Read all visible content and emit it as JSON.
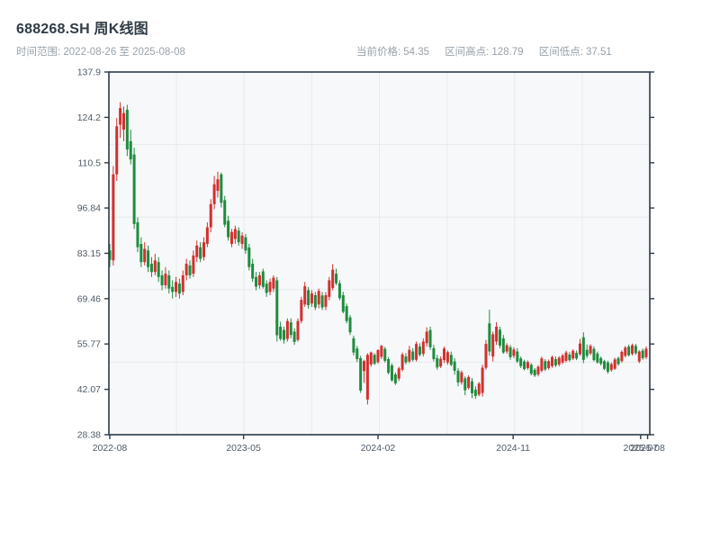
{
  "header": {
    "title": "688268.SH 周K线图",
    "subtitle": "时间范围: 2022-08-26 至 2025-08-08",
    "stats": [
      {
        "label": "当前价格:",
        "value": "54.35"
      },
      {
        "label": "区间高点:",
        "value": "128.79"
      },
      {
        "label": "区间低点:",
        "value": "37.51"
      }
    ]
  },
  "chart_data": {
    "type": "candlestick",
    "title": "688268.SH 周K线图",
    "period": "weekly",
    "date_start": "2022-08-26",
    "date_end": "2025-08-08",
    "current_price": 54.35,
    "range_high": 128.79,
    "range_low": 37.51,
    "ylim": [
      28.38,
      137.9
    ],
    "y_tick_labels": [
      "137.9",
      "124.2",
      "110.5",
      "96.84",
      "83.15",
      "69.46",
      "55.77",
      "42.07",
      "28.38"
    ],
    "x_ticks": [
      {
        "label": "2022-08",
        "week": 0
      },
      {
        "label": "2023-05",
        "week": 38.4
      },
      {
        "label": "2024-02",
        "week": 77
      },
      {
        "label": "2024-11",
        "week": 115.8
      },
      {
        "label": "2025-07",
        "week": 152.4
      },
      {
        "label": "2025-08",
        "week": 154.4
      }
    ],
    "grid": {
      "v_divisions": 8,
      "h_divisions": 5,
      "color": "#e7eaee"
    },
    "colors": {
      "up": "#d2302e",
      "down": "#1e8c3d",
      "frame": "#2b3a4a",
      "plot_bg": "#f7f8fa",
      "tick_label": "#4e5a66"
    },
    "ohlc": [
      [
        84,
        86,
        79,
        81.2
      ],
      [
        81,
        109.5,
        79.5,
        107
      ],
      [
        107,
        124,
        105,
        121.5
      ],
      [
        122,
        128.79,
        118,
        127
      ],
      [
        120.5,
        127.5,
        117,
        125.5
      ],
      [
        126.5,
        128,
        112.5,
        114.5
      ],
      [
        117,
        120.5,
        110,
        111.5
      ],
      [
        113,
        115,
        90.5,
        92
      ],
      [
        92.5,
        94,
        83.5,
        85
      ],
      [
        86,
        88,
        79,
        80.5
      ],
      [
        80.5,
        86.5,
        79.5,
        84.5
      ],
      [
        84,
        85.5,
        77.5,
        79
      ],
      [
        80,
        82,
        76,
        77.5
      ],
      [
        77.5,
        83,
        76.5,
        81
      ],
      [
        80.5,
        82,
        74.5,
        76
      ],
      [
        76.5,
        78,
        72,
        73.5
      ],
      [
        73.5,
        79,
        72.5,
        77
      ],
      [
        76.5,
        78,
        71,
        72.5
      ],
      [
        73,
        75,
        69.5,
        71.5
      ],
      [
        71.5,
        76,
        70,
        74.5
      ],
      [
        74,
        75.5,
        69.5,
        71
      ],
      [
        71.5,
        78,
        70.5,
        76.5
      ],
      [
        76.5,
        81.5,
        75,
        80
      ],
      [
        79.5,
        81,
        75.5,
        76.5
      ],
      [
        77,
        84,
        76,
        82.5
      ],
      [
        82,
        87,
        80.5,
        85.5
      ],
      [
        85,
        86.5,
        80.5,
        81.5
      ],
      [
        82,
        88,
        81,
        86.5
      ],
      [
        86,
        92.5,
        85,
        91
      ],
      [
        91,
        99.5,
        89.5,
        98
      ],
      [
        98,
        106.5,
        96.5,
        104
      ],
      [
        102,
        107.8,
        100,
        105.5
      ],
      [
        107,
        107.5,
        97,
        98.4
      ],
      [
        99.2,
        100.5,
        91,
        91.8
      ],
      [
        93,
        94.5,
        87,
        88
      ],
      [
        86,
        90.5,
        85,
        89.6
      ],
      [
        87.5,
        91.5,
        86,
        90.5
      ],
      [
        90,
        91,
        85.5,
        86.5
      ],
      [
        86,
        89.5,
        84.5,
        88.5
      ],
      [
        88,
        89,
        83,
        84
      ],
      [
        84.9,
        86,
        78,
        79
      ],
      [
        80,
        81.5,
        74.5,
        75.5
      ],
      [
        76,
        77.5,
        72,
        73.1
      ],
      [
        73.5,
        77.5,
        72.5,
        76.5
      ],
      [
        77.7,
        78.5,
        72.5,
        73
      ],
      [
        74,
        75,
        70,
        71.2
      ],
      [
        71.5,
        75.5,
        70.5,
        74.5
      ],
      [
        72.5,
        76.5,
        71.5,
        75.8
      ],
      [
        75,
        76,
        56.5,
        58.4
      ],
      [
        61,
        62.5,
        56.8,
        57.3
      ],
      [
        60,
        61,
        55.9,
        57
      ],
      [
        57.3,
        63.5,
        56.5,
        62.7
      ],
      [
        62.3,
        63.5,
        57.5,
        58.5
      ],
      [
        59.5,
        60.5,
        55.5,
        56.4
      ],
      [
        57,
        63.5,
        56.5,
        62.7
      ],
      [
        62.7,
        70,
        62,
        69.1
      ],
      [
        67.7,
        74.5,
        67,
        73.2
      ],
      [
        72,
        73,
        66.5,
        67.5
      ],
      [
        68,
        72,
        67,
        71
      ],
      [
        70.5,
        71.5,
        66,
        66.8
      ],
      [
        67.7,
        72.5,
        66.5,
        71.8
      ],
      [
        70.4,
        71.5,
        66,
        66.8
      ],
      [
        67,
        71.5,
        66,
        70.5
      ],
      [
        70,
        76,
        69,
        75
      ],
      [
        72.7,
        79.9,
        72,
        78.2
      ],
      [
        77,
        78.5,
        73.5,
        74.1
      ],
      [
        74.1,
        75,
        69,
        69.6
      ],
      [
        70.5,
        71.5,
        65,
        65.5
      ],
      [
        67.2,
        68,
        62,
        62.7
      ],
      [
        63.8,
        64.5,
        58.5,
        59.3
      ],
      [
        57.5,
        58.3,
        52.3,
        53.2
      ],
      [
        54.4,
        55.2,
        50.3,
        51.2
      ],
      [
        51.5,
        52.2,
        41,
        41.7
      ],
      [
        47.6,
        51,
        44,
        50.6
      ],
      [
        39,
        53,
        37.51,
        52.5
      ],
      [
        49.6,
        53.5,
        48.9,
        53.2
      ],
      [
        52.5,
        53,
        49.4,
        49.8
      ],
      [
        50.3,
        54.2,
        49.8,
        53.9
      ],
      [
        51.9,
        55.5,
        51.2,
        55.2
      ],
      [
        54.3,
        54.9,
        50.2,
        50.7
      ],
      [
        51.2,
        51.8,
        46.6,
        47.1
      ],
      [
        49.3,
        49.9,
        44.4,
        44.8
      ],
      [
        46.6,
        47.2,
        43.4,
        43.9
      ],
      [
        45.3,
        48.9,
        44.6,
        48.4
      ],
      [
        48,
        53.2,
        47.5,
        52.6
      ],
      [
        52,
        53,
        49.6,
        50.2
      ],
      [
        50.5,
        55.2,
        50,
        54
      ],
      [
        53.5,
        54.5,
        50.5,
        51
      ],
      [
        51,
        56.5,
        50.5,
        55.8
      ],
      [
        55,
        56,
        52,
        52.5
      ],
      [
        52.8,
        57.5,
        52,
        56.5
      ],
      [
        56,
        60.8,
        55,
        59.5
      ],
      [
        60,
        61,
        54,
        54.8
      ],
      [
        54.5,
        55.5,
        50.5,
        51.2
      ],
      [
        51.5,
        52.5,
        48,
        48.7
      ],
      [
        49,
        52,
        48.5,
        51.3
      ],
      [
        50.9,
        55,
        50,
        54.4
      ],
      [
        50.2,
        53.8,
        49.5,
        53.3
      ],
      [
        52.5,
        53.5,
        49,
        49.5
      ],
      [
        50.5,
        51.5,
        46.5,
        47.7
      ],
      [
        47.7,
        48.5,
        43,
        44.2
      ],
      [
        44.2,
        47.8,
        43.5,
        47.2
      ],
      [
        45.4,
        46,
        40.3,
        41.8
      ],
      [
        42.5,
        46.3,
        42,
        45.8
      ],
      [
        44.5,
        45.5,
        39.4,
        40.9
      ],
      [
        42,
        43,
        39.2,
        40.1
      ],
      [
        40.5,
        44.3,
        40,
        43.8
      ],
      [
        41,
        49.5,
        39.9,
        48.6
      ],
      [
        48.6,
        57,
        48,
        55.8
      ],
      [
        62,
        66.1,
        52.3,
        53.5
      ],
      [
        52,
        59.5,
        50.5,
        58.7
      ],
      [
        56.5,
        62.4,
        55.5,
        61
      ],
      [
        60.1,
        61,
        54.5,
        55.3
      ],
      [
        57.5,
        58.5,
        52.8,
        53.2
      ],
      [
        53.5,
        56,
        52.8,
        55.4
      ],
      [
        54.8,
        55.5,
        51,
        51.8
      ],
      [
        52.2,
        54.8,
        51.5,
        54.1
      ],
      [
        53.5,
        54.5,
        50,
        50.5
      ],
      [
        51.4,
        52,
        48.5,
        49.1
      ],
      [
        50.5,
        51,
        47.8,
        48.2
      ],
      [
        48.5,
        50.8,
        48,
        50.3
      ],
      [
        49.5,
        50,
        46.3,
        46.8
      ],
      [
        48,
        48.5,
        45.8,
        46.3
      ],
      [
        46.6,
        49.4,
        46,
        48.9
      ],
      [
        47.7,
        52,
        47.2,
        51.4
      ],
      [
        50.6,
        51.2,
        47.6,
        48.1
      ],
      [
        48.5,
        51.1,
        48,
        50.6
      ],
      [
        49.1,
        52.3,
        48.6,
        51.8
      ],
      [
        51.2,
        52,
        48.8,
        49.3
      ],
      [
        49.6,
        52.1,
        49,
        51.6
      ],
      [
        50.2,
        52.8,
        49.7,
        52.3
      ],
      [
        50.7,
        53.7,
        50.2,
        53.2
      ],
      [
        52.6,
        53.3,
        50.4,
        50.9
      ],
      [
        51.4,
        54.2,
        50.9,
        53.7
      ],
      [
        53.1,
        53.8,
        50.9,
        51.4
      ],
      [
        52.7,
        57.3,
        52.2,
        55.9
      ],
      [
        57.8,
        59.3,
        50,
        51
      ],
      [
        54,
        55.6,
        51.5,
        52.2
      ],
      [
        52.9,
        55.7,
        52.4,
        55.2
      ],
      [
        54.3,
        55,
        50.5,
        50.9
      ],
      [
        52.9,
        53.5,
        49.8,
        50.2
      ],
      [
        51.5,
        52,
        49.3,
        49.8
      ],
      [
        50.6,
        51,
        47.9,
        48.3
      ],
      [
        50.2,
        50.7,
        46.8,
        47.4
      ],
      [
        47.9,
        50.2,
        47.4,
        49.7
      ],
      [
        48.3,
        51.6,
        47.9,
        51.1
      ],
      [
        51.5,
        52,
        49.2,
        49.7
      ],
      [
        50.6,
        53.9,
        50.1,
        53.4
      ],
      [
        52.2,
        55.2,
        51.7,
        54.7
      ],
      [
        55,
        55.6,
        52,
        52.4
      ],
      [
        52.8,
        55.9,
        52.3,
        55.4
      ],
      [
        55.2,
        55.8,
        52.5,
        53
      ],
      [
        50.5,
        53.9,
        50,
        53.5
      ],
      [
        53.8,
        54.4,
        51,
        51.5
      ],
      [
        51.8,
        55,
        51.2,
        54.35
      ]
    ]
  }
}
